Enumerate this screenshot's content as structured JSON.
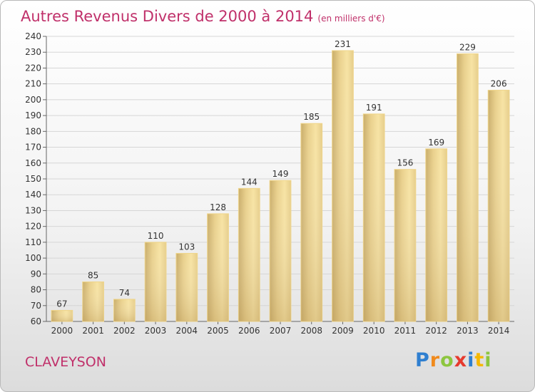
{
  "title": "Autres Revenus Divers de 2000 à 2014",
  "unit_note": "(en milliers d'€)",
  "location": "CLAVEYSON",
  "logo": {
    "text": "Proxiti",
    "letters": [
      {
        "ch": "P",
        "color": "#2f7fd0"
      },
      {
        "ch": "r",
        "color": "#f08a1c"
      },
      {
        "ch": "o",
        "color": "#8dc63f"
      },
      {
        "ch": "x",
        "color": "#e63a2e"
      },
      {
        "ch": "i",
        "color": "#2f7fd0"
      },
      {
        "ch": "t",
        "color": "#f5b800"
      },
      {
        "ch": "i",
        "color": "#8dc63f"
      }
    ]
  },
  "colors": {
    "title": "#c0306a",
    "bar_light": "#f7e3a3",
    "bar_dark": "#c9ad6a",
    "grid": "#d6d6d6"
  },
  "chart_data": {
    "type": "bar",
    "categories": [
      "2000",
      "2001",
      "2002",
      "2003",
      "2004",
      "2005",
      "2006",
      "2007",
      "2008",
      "2009",
      "2010",
      "2011",
      "2012",
      "2013",
      "2014"
    ],
    "values": [
      67,
      85,
      74,
      110,
      103,
      128,
      144,
      149,
      185,
      231,
      191,
      156,
      169,
      229,
      206
    ],
    "ylim": [
      60,
      240
    ],
    "yticks": [
      60,
      70,
      80,
      90,
      100,
      110,
      120,
      130,
      140,
      150,
      160,
      170,
      180,
      190,
      200,
      210,
      220,
      230,
      240
    ],
    "grid": true
  }
}
